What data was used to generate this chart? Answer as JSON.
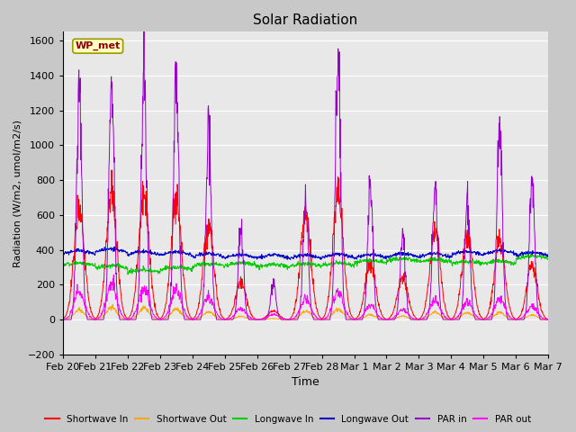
{
  "title": "Solar Radiation",
  "xlabel": "Time",
  "ylabel": "Radiation (W/m2, umol/m2/s)",
  "ylim": [
    -200,
    1650
  ],
  "yticks": [
    -200,
    0,
    200,
    400,
    600,
    800,
    1000,
    1200,
    1400,
    1600
  ],
  "x_tick_labels": [
    "Feb 20",
    "Feb 21",
    "Feb 22",
    "Feb 23",
    "Feb 24",
    "Feb 25",
    "Feb 26",
    "Feb 27",
    "Feb 28",
    "Mar 1",
    "Mar 2",
    "Mar 3",
    "Mar 4",
    "Mar 5",
    "Mar 6",
    "Mar 7"
  ],
  "station_label": "WP_met",
  "colors": {
    "shortwave_in": "#FF0000",
    "shortwave_out": "#FFA500",
    "longwave_in": "#00CC00",
    "longwave_out": "#0000CC",
    "par_in": "#9900CC",
    "par_out": "#FF00FF"
  },
  "legend_labels": [
    "Shortwave In",
    "Shortwave Out",
    "Longwave In",
    "Longwave Out",
    "PAR in",
    "PAR out"
  ],
  "fig_bg": "#C8C8C8",
  "plot_bg": "#E8E8E8"
}
